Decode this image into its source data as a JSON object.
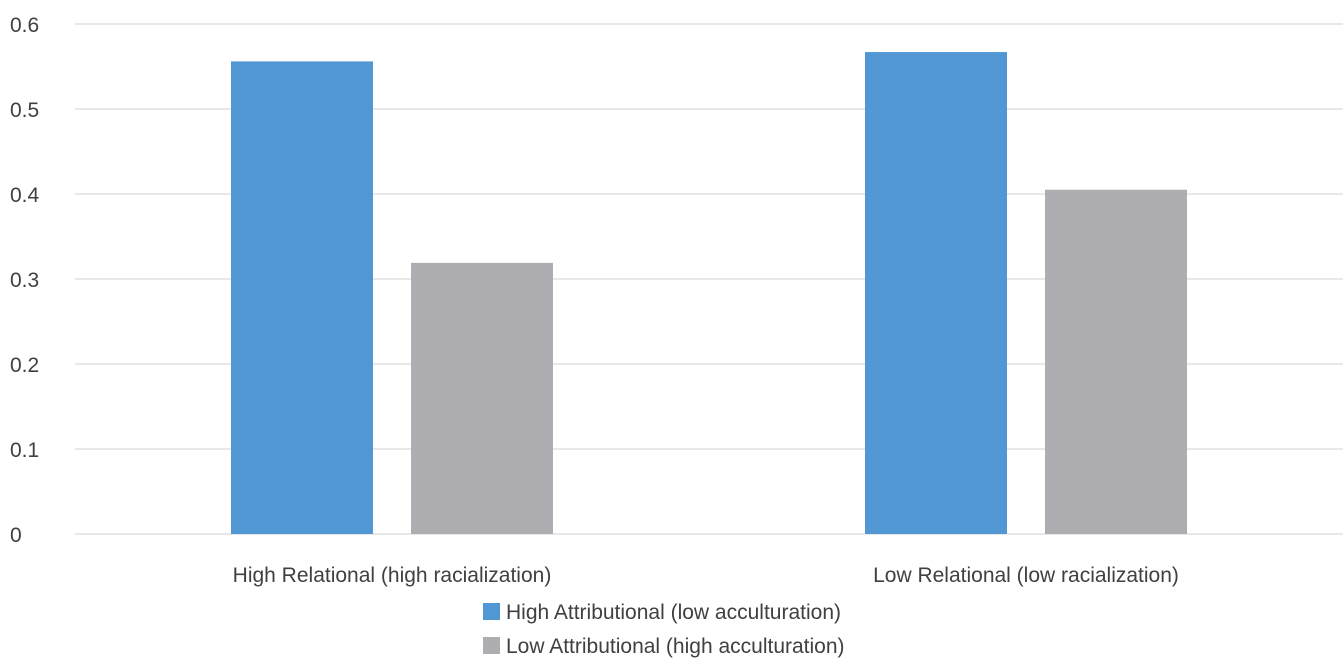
{
  "chart_data": {
    "type": "bar",
    "categories": [
      "High Relational (high racialization)",
      "Low Relational (low racialization)"
    ],
    "series": [
      {
        "name": "High Attributional (low acculturation)",
        "values": [
          0.556,
          0.567
        ],
        "color": "#5097d3"
      },
      {
        "name": "Low Attributional (high acculturation)",
        "values": [
          0.319,
          0.405
        ],
        "color": "#aeaeb2"
      }
    ],
    "y_ticks": [
      "0",
      "0.1",
      "0.2",
      "0.3",
      "0.4",
      "0.5",
      "0.6"
    ],
    "ylim": [
      0,
      0.6
    ],
    "grid": true,
    "legend_position": "bottom"
  }
}
